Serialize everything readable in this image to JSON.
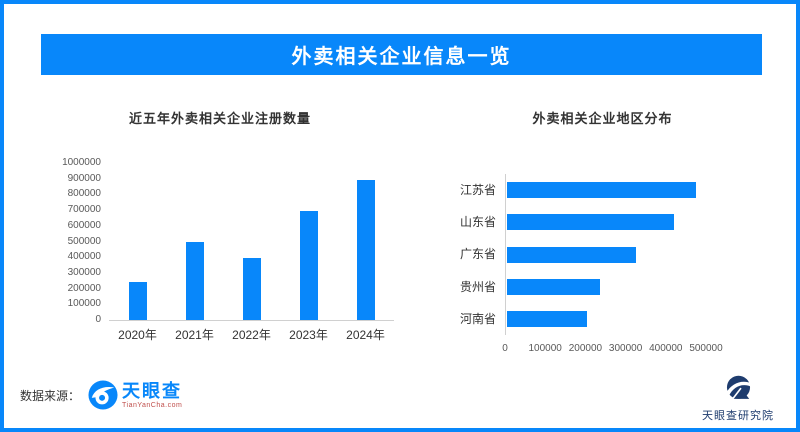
{
  "header": {
    "title": "外卖相关企业信息一览"
  },
  "theme": {
    "accent": "#0887FA",
    "navy": "#1E3C6E",
    "text_dark": "#333333",
    "tick_gray": "#595959",
    "axis_line": "#D0D0D0",
    "logo_sub_red": "#C0504D"
  },
  "chart_data": [
    {
      "type": "bar",
      "orientation": "vertical",
      "title": "近五年外卖相关企业注册数量",
      "categories": [
        "2020年",
        "2021年",
        "2022年",
        "2023年",
        "2024年"
      ],
      "values": [
        245000,
        495000,
        395000,
        695000,
        895000
      ],
      "xlabel": "",
      "ylabel": "",
      "ylim": [
        0,
        1000000
      ],
      "yticks": [
        0,
        100000,
        200000,
        300000,
        400000,
        500000,
        600000,
        700000,
        800000,
        900000,
        1000000
      ],
      "bar_color": "#0887FA",
      "grid": false,
      "legend": "none"
    },
    {
      "type": "bar",
      "orientation": "horizontal",
      "title": "外卖相关企业地区分布",
      "categories": [
        "江苏省",
        "山东省",
        "广东省",
        "贵州省",
        "河南省"
      ],
      "values": [
        470000,
        415000,
        320000,
        232000,
        200000
      ],
      "xlabel": "",
      "ylabel": "",
      "xlim": [
        0,
        500000
      ],
      "xticks": [
        0,
        100000,
        200000,
        300000,
        400000,
        500000
      ],
      "bar_color": "#0887FA",
      "grid": false,
      "legend": "none"
    }
  ],
  "footer": {
    "source_label": "数据来源：",
    "tianyancha_wordmark": "天眼查",
    "tianyancha_url": "TianYanCha.com",
    "institute_name": "天眼查研究院"
  }
}
